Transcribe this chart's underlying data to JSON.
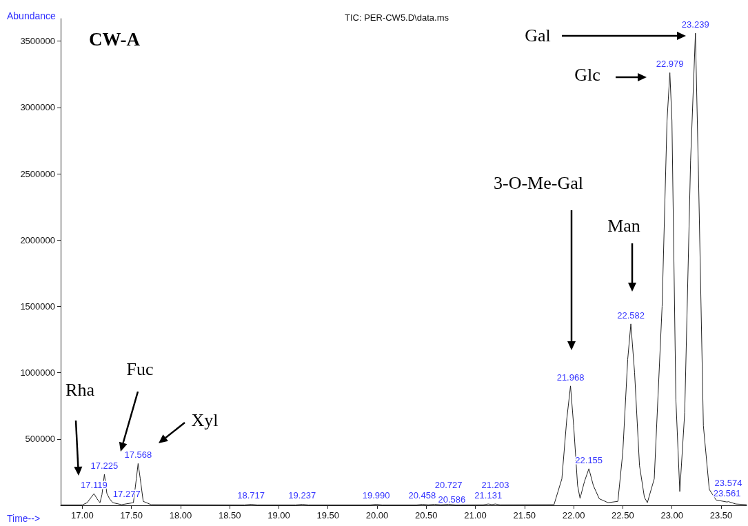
{
  "chart_data": {
    "type": "line",
    "title": "TIC: PER-CW5.D\\data.ms",
    "xlabel": "Time-->",
    "ylabel": "Abundance",
    "xlim": [
      16.78,
      23.76
    ],
    "ylim": [
      0,
      3670000
    ],
    "xticks": [
      {
        "value": 17,
        "label": "17.00"
      },
      {
        "value": 17.5,
        "label": "17.50"
      },
      {
        "value": 18,
        "label": "18.00"
      },
      {
        "value": 18.5,
        "label": "18.50"
      },
      {
        "value": 19,
        "label": "19.00"
      },
      {
        "value": 19.5,
        "label": "19.50"
      },
      {
        "value": 20,
        "label": "20.00"
      },
      {
        "value": 20.5,
        "label": "20.50"
      },
      {
        "value": 21,
        "label": "21.00"
      },
      {
        "value": 21.5,
        "label": "21.50"
      },
      {
        "value": 22,
        "label": "22.00"
      },
      {
        "value": 22.5,
        "label": "22.50"
      },
      {
        "value": 23,
        "label": "23.00"
      },
      {
        "value": 23.5,
        "label": "23.50"
      }
    ],
    "yticks": [
      500000,
      1000000,
      1500000,
      2000000,
      2500000,
      3000000,
      3500000
    ],
    "series": [
      {
        "color": "#222222",
        "x": [
          16.78,
          17.0,
          17.05,
          17.09,
          17.119,
          17.15,
          17.18,
          17.2,
          17.225,
          17.25,
          17.277,
          17.31,
          17.4,
          17.52,
          17.55,
          17.568,
          17.59,
          17.62,
          17.7,
          18.65,
          18.717,
          18.78,
          19.17,
          19.237,
          19.3,
          19.93,
          19.99,
          20.05,
          20.4,
          20.458,
          20.52,
          20.586,
          20.65,
          20.727,
          20.8,
          21.08,
          21.131,
          21.17,
          21.203,
          21.25,
          21.8,
          21.88,
          21.93,
          21.968,
          22.0,
          22.04,
          22.065,
          22.11,
          22.155,
          22.2,
          22.26,
          22.35,
          22.45,
          22.5,
          22.55,
          22.582,
          22.62,
          22.67,
          22.72,
          22.75,
          22.82,
          22.9,
          22.95,
          22.979,
          23.0,
          23.04,
          23.08,
          23.13,
          23.19,
          23.239,
          23.27,
          23.32,
          23.38,
          23.45,
          23.561,
          23.574,
          23.65,
          23.76
        ],
        "values": [
          3000,
          3000,
          20000,
          60000,
          88000,
          50000,
          20000,
          80000,
          234000,
          90000,
          50000,
          20000,
          5000,
          20000,
          200000,
          315000,
          200000,
          30000,
          5000,
          3000,
          8000,
          3000,
          3000,
          8000,
          3000,
          3000,
          8000,
          3000,
          3000,
          8000,
          4000,
          8000,
          4000,
          8000,
          3000,
          4000,
          10000,
          6000,
          10000,
          4000,
          5000,
          200000,
          650000,
          900000,
          600000,
          150000,
          52000,
          180000,
          276000,
          150000,
          50000,
          20000,
          30000,
          400000,
          1100000,
          1368000,
          1000000,
          300000,
          60000,
          20000,
          200000,
          1500000,
          2900000,
          3262000,
          2900000,
          800000,
          104000,
          700000,
          2600000,
          3560000,
          2500000,
          600000,
          120000,
          40000,
          25000,
          28000,
          10000,
          5000
        ]
      }
    ],
    "annotations": [
      "CW-A",
      "Rha",
      "Fuc",
      "Xyl",
      "3-O-Me-Gal",
      "Man",
      "Glc",
      "Gal",
      {
        "text": "17.119",
        "x": 17.119,
        "y": 88000
      },
      {
        "text": "17.225",
        "x": 17.225,
        "y": 234000
      },
      {
        "text": "17.277",
        "x": 17.277,
        "y": 50000
      },
      {
        "text": "17.568",
        "x": 17.568,
        "y": 315000
      },
      {
        "text": "18.717",
        "x": 18.717,
        "y": 8000
      },
      {
        "text": "19.237",
        "x": 19.237,
        "y": 8000
      },
      {
        "text": "19.990",
        "x": 19.99,
        "y": 8000
      },
      {
        "text": "20.458",
        "x": 20.458,
        "y": 8000
      },
      {
        "text": "20.586",
        "x": 20.586,
        "y": 8000
      },
      {
        "text": "20.727",
        "x": 20.727,
        "y": 8000
      },
      {
        "text": "21.131",
        "x": 21.131,
        "y": 10000
      },
      {
        "text": "21.203",
        "x": 21.203,
        "y": 10000
      },
      {
        "text": "21.968",
        "x": 21.968,
        "y": 900000
      },
      {
        "text": "22.155",
        "x": 22.155,
        "y": 276000
      },
      {
        "text": "22.582",
        "x": 22.582,
        "y": 1368000
      },
      {
        "text": "22.979",
        "x": 22.979,
        "y": 3262000
      },
      {
        "text": "23.239",
        "x": 23.239,
        "y": 3560000
      },
      {
        "text": "23.561",
        "x": 23.561,
        "y": 25000
      },
      {
        "text": "23.574",
        "x": 23.574,
        "y": 28000
      }
    ]
  }
}
